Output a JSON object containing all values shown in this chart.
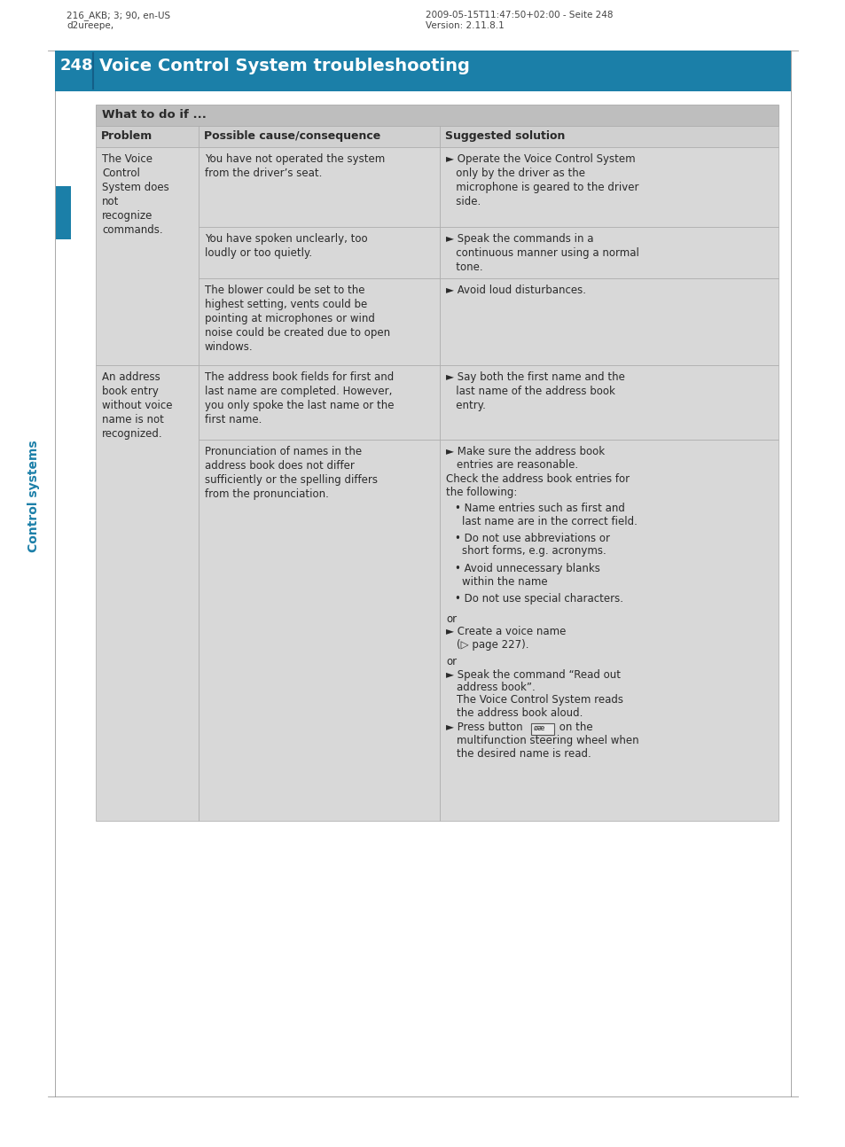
{
  "header_meta_left1": "216_AKB; 3; 90, en-US",
  "header_meta_left2": "d2ureepe,",
  "header_meta_right1": "2009-05-15T11:47:50+02:00 - Seite 248",
  "header_meta_right2": "Version: 2.11.8.1",
  "page_number": "248",
  "page_title": "Voice Control System troubleshooting",
  "section_header": "What to do if ...",
  "col_headers": [
    "Problem",
    "Possible cause/consequence",
    "Suggested solution"
  ],
  "header_bg": "#1b7fa8",
  "header_text_color": "#ffffff",
  "section_header_bg": "#bebebe",
  "table_bg": "#d8d8d8",
  "col_header_bg": "#d0d0d0",
  "sidebar_color": "#1b7fa8",
  "bg_color": "#ffffff",
  "text_color": "#2a2a2a",
  "border_color": "#aaaaaa",
  "meta_color": "#444444"
}
